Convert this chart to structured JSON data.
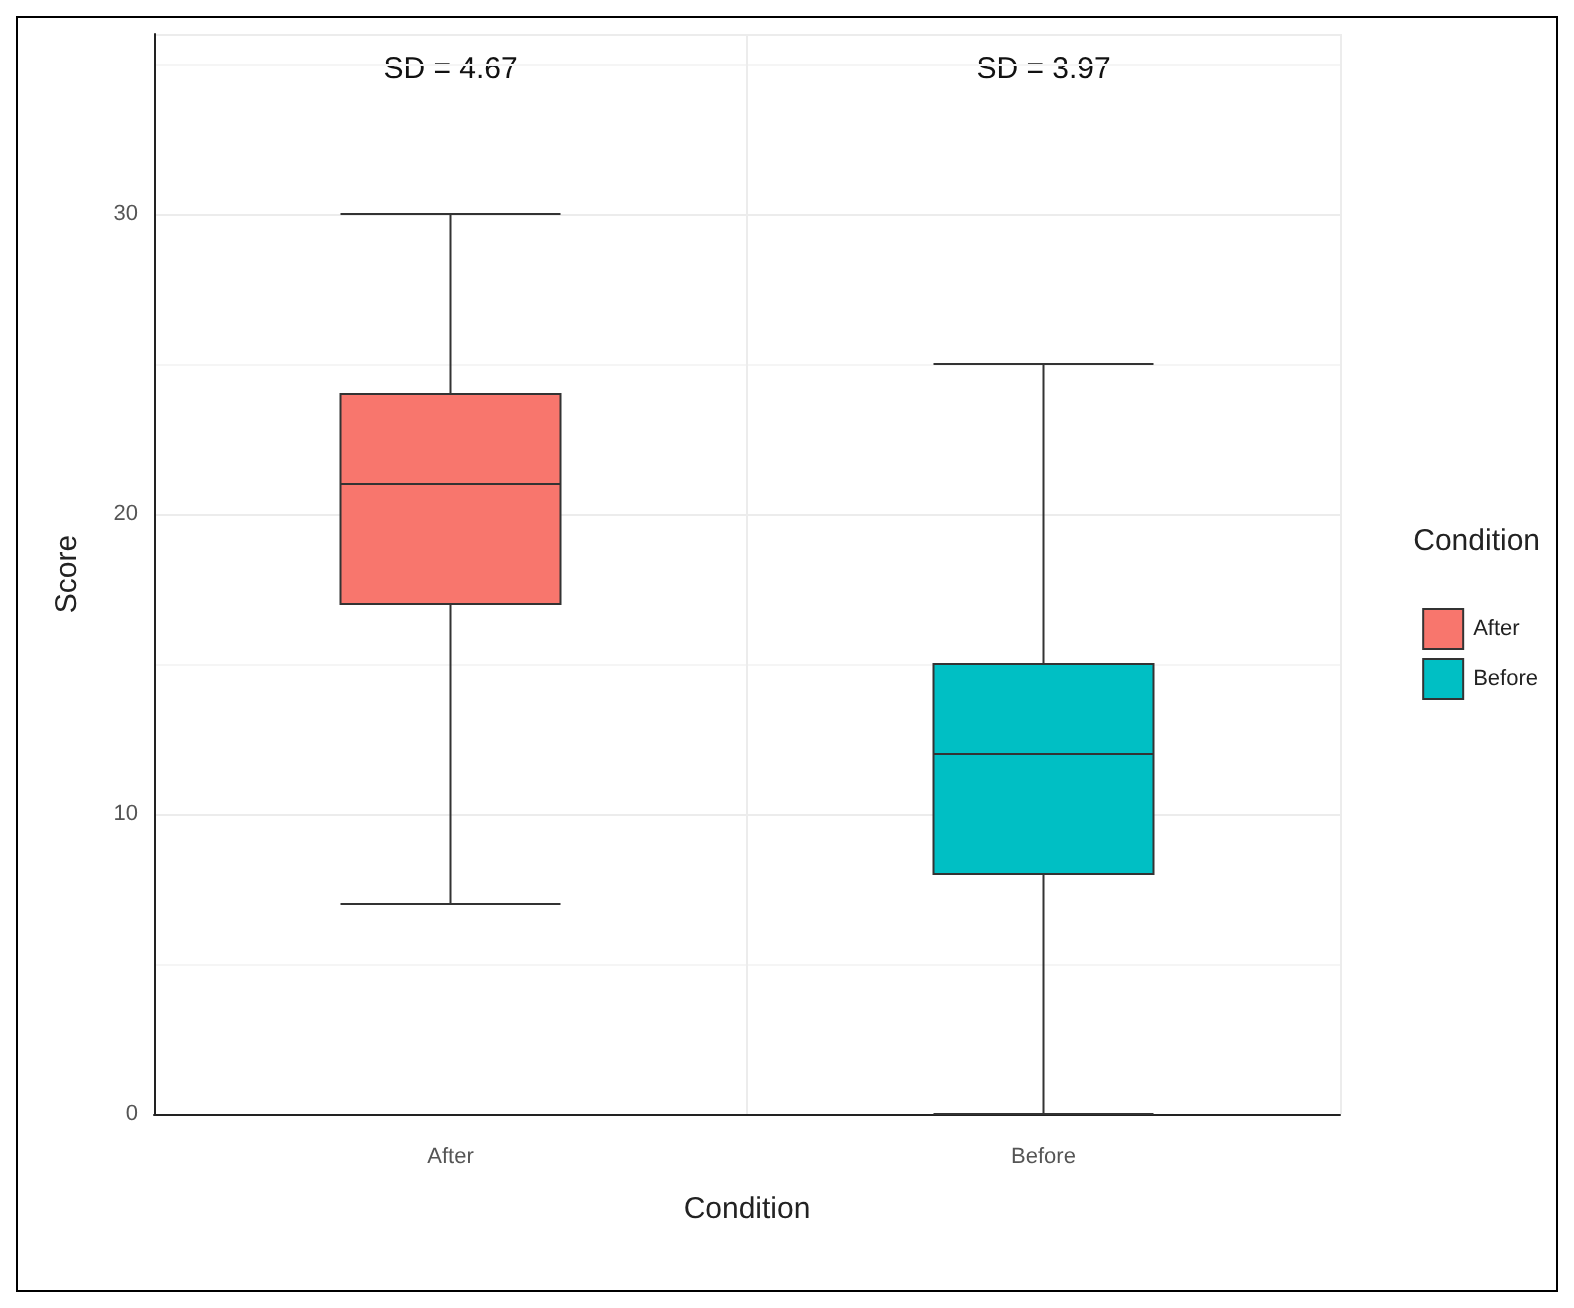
{
  "chart_data": {
    "type": "box",
    "xlabel": "Condition",
    "ylabel": "Score",
    "legend_title": "Condition",
    "legend": "right",
    "grid": true,
    "categories": [
      "After",
      "Before"
    ],
    "series": [
      {
        "name": "After",
        "color": "#f8766d",
        "boxes": [
          {
            "low": 7,
            "q1": 17,
            "median": 21,
            "q3": 24,
            "high": 30
          },
          null
        ]
      },
      {
        "name": "Before",
        "color": "#00bfc4",
        "boxes": [
          null,
          {
            "low": 0,
            "q1": 8,
            "median": 12,
            "q3": 15,
            "high": 25
          }
        ]
      }
    ],
    "ylim": [
      0,
      36
    ],
    "yticks": [
      0,
      10,
      20,
      30
    ],
    "annotations": [
      "SD = 4.67",
      "SD = 3.97"
    ]
  }
}
